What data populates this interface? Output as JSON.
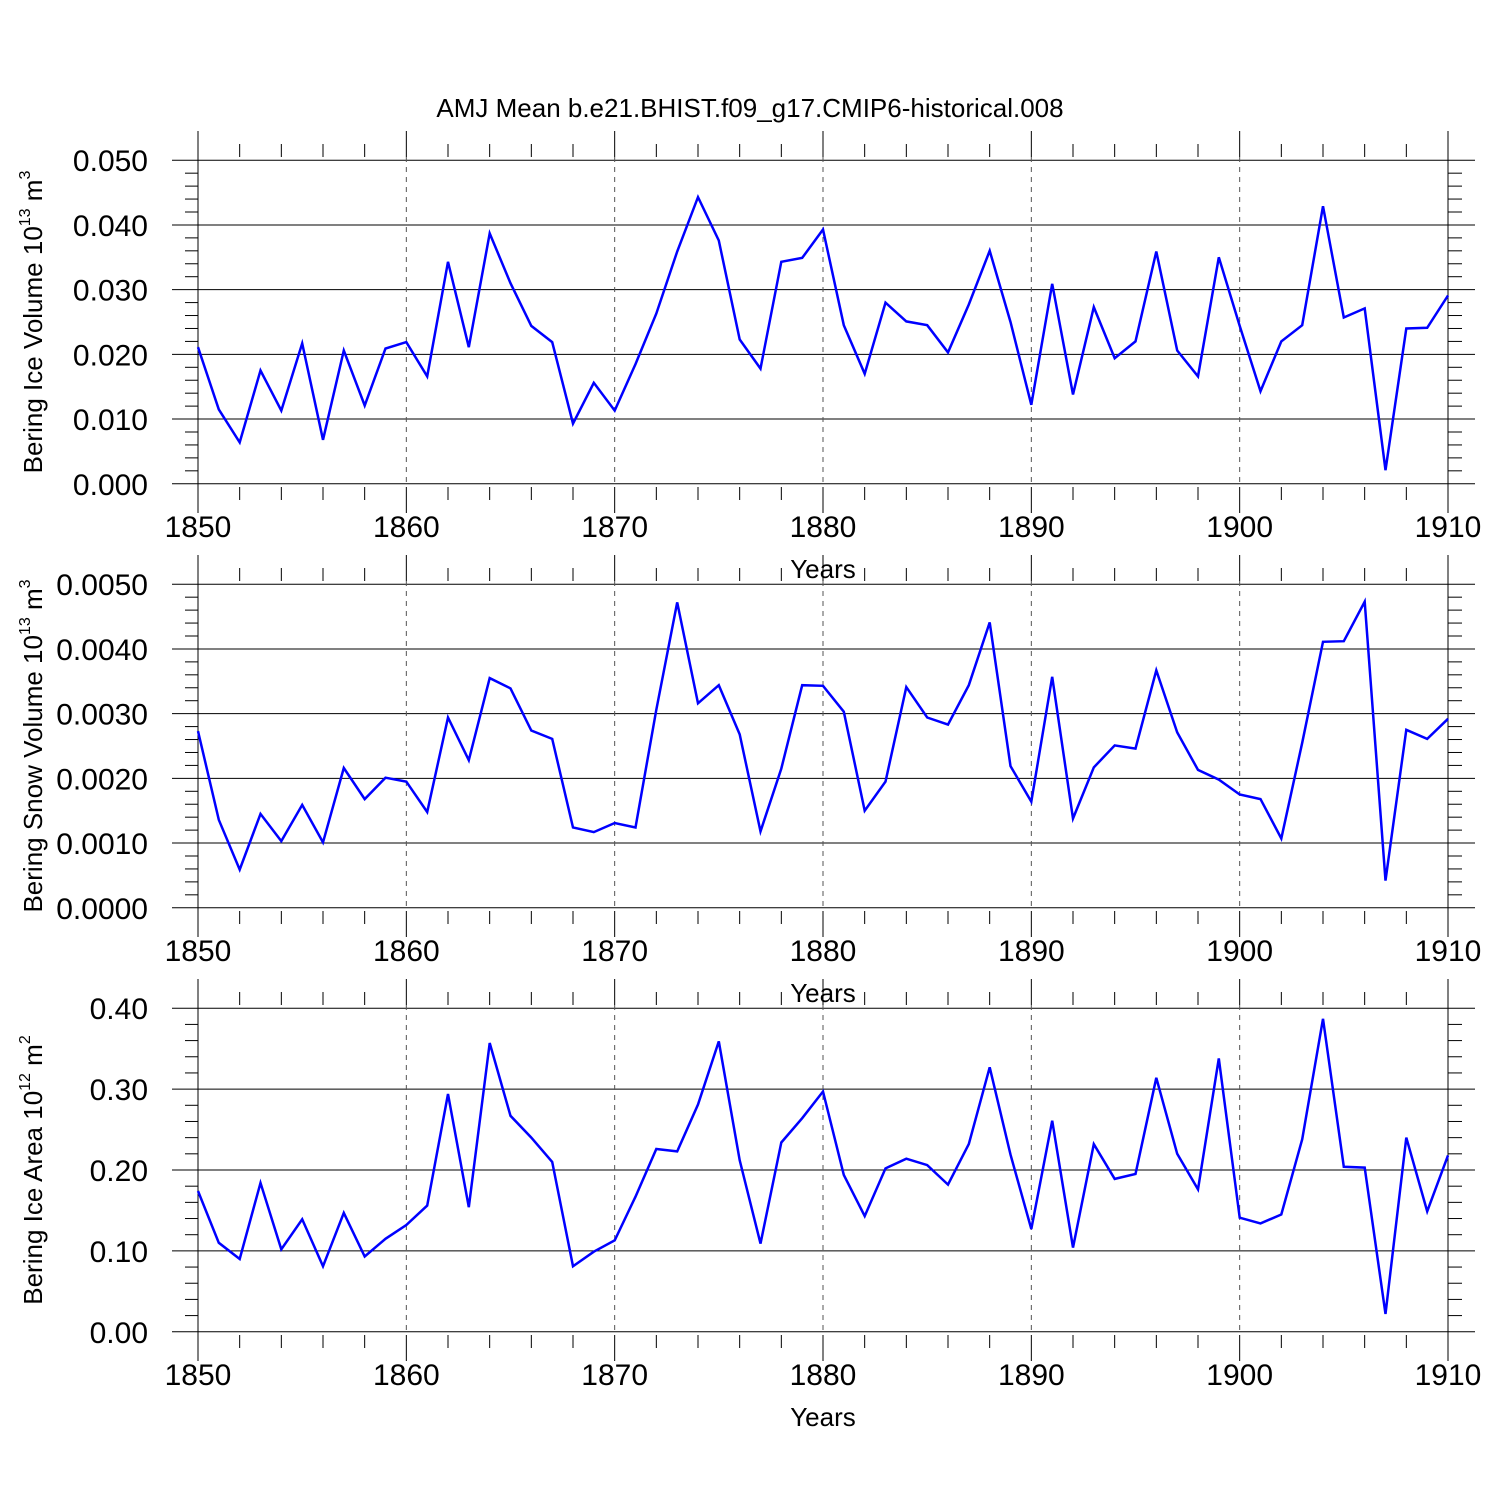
{
  "title": "AMJ Mean b.e21.BHIST.f09_g17.CMIP6-historical.008",
  "line_color": "#0000ff",
  "chart_data": [
    {
      "type": "line",
      "ylabel": {
        "text": "Bering Ice Volume 10",
        "sup1": "13",
        "unit": " m",
        "sup2": "3"
      },
      "xlabel": "Years",
      "xlim": [
        1850,
        1910
      ],
      "ylim": [
        -0.0005,
        0.0505
      ],
      "x_ticks": [
        1850,
        1860,
        1870,
        1880,
        1890,
        1900,
        1910
      ],
      "y_ticks": [
        0.0,
        0.01,
        0.02,
        0.03,
        0.04,
        0.05
      ],
      "y_tick_labels": [
        "0.000",
        "0.010",
        "0.020",
        "0.030",
        "0.040",
        "0.050"
      ],
      "x": [
        1850,
        1851,
        1852,
        1853,
        1854,
        1855,
        1856,
        1857,
        1858,
        1859,
        1860,
        1861,
        1862,
        1863,
        1864,
        1865,
        1866,
        1867,
        1868,
        1869,
        1870,
        1871,
        1872,
        1873,
        1874,
        1875,
        1876,
        1877,
        1878,
        1879,
        1880,
        1881,
        1882,
        1883,
        1884,
        1885,
        1886,
        1887,
        1888,
        1889,
        1890,
        1891,
        1892,
        1893,
        1894,
        1895,
        1896,
        1897,
        1898,
        1899,
        1900,
        1901,
        1902,
        1903,
        1904,
        1905,
        1906,
        1907,
        1908,
        1909,
        1910
      ],
      "values": [
        0.0211,
        0.0115,
        0.0064,
        0.0175,
        0.0113,
        0.0217,
        0.0068,
        0.0206,
        0.0121,
        0.0209,
        0.0219,
        0.0166,
        0.0343,
        0.0211,
        0.0387,
        0.031,
        0.0244,
        0.0219,
        0.0093,
        0.0156,
        0.0113,
        0.0185,
        0.0263,
        0.0359,
        0.0443,
        0.0376,
        0.0223,
        0.0178,
        0.0343,
        0.0349,
        0.0393,
        0.0245,
        0.017,
        0.028,
        0.0251,
        0.0245,
        0.0203,
        0.0277,
        0.036,
        0.025,
        0.0122,
        0.0309,
        0.0138,
        0.0273,
        0.0194,
        0.022,
        0.0359,
        0.0206,
        0.0166,
        0.035,
        0.0244,
        0.0143,
        0.022,
        0.0245,
        0.0429,
        0.0257,
        0.0271,
        0.0021,
        0.024,
        0.0241,
        0.0291
      ]
    },
    {
      "type": "line",
      "ylabel": {
        "text": "Bering Snow Volume 10",
        "sup1": "13",
        "unit": " m",
        "sup2": "3"
      },
      "xlabel": "Years",
      "xlim": [
        1850,
        1910
      ],
      "ylim": [
        -5e-05,
        0.00505
      ],
      "x_ticks": [
        1850,
        1860,
        1870,
        1880,
        1890,
        1900,
        1910
      ],
      "y_ticks": [
        0.0,
        0.001,
        0.002,
        0.003,
        0.004,
        0.005
      ],
      "y_tick_labels": [
        "0.0000",
        "0.0010",
        "0.0020",
        "0.0030",
        "0.0040",
        "0.0050"
      ],
      "x": [
        1850,
        1851,
        1852,
        1853,
        1854,
        1855,
        1856,
        1857,
        1858,
        1859,
        1860,
        1861,
        1862,
        1863,
        1864,
        1865,
        1866,
        1867,
        1868,
        1869,
        1870,
        1871,
        1872,
        1873,
        1874,
        1875,
        1876,
        1877,
        1878,
        1879,
        1880,
        1881,
        1882,
        1883,
        1884,
        1885,
        1886,
        1887,
        1888,
        1889,
        1890,
        1891,
        1892,
        1893,
        1894,
        1895,
        1896,
        1897,
        1898,
        1899,
        1900,
        1901,
        1902,
        1903,
        1904,
        1905,
        1906,
        1907,
        1908,
        1909,
        1910
      ],
      "values": [
        0.00273,
        0.00136,
        0.00059,
        0.00145,
        0.00103,
        0.00159,
        0.00101,
        0.00216,
        0.00168,
        0.00201,
        0.00195,
        0.00148,
        0.00294,
        0.00228,
        0.00355,
        0.00339,
        0.00274,
        0.00261,
        0.00124,
        0.00117,
        0.00131,
        0.00124,
        0.00306,
        0.00472,
        0.00316,
        0.00344,
        0.00268,
        0.00118,
        0.00215,
        0.00344,
        0.00343,
        0.00303,
        0.0015,
        0.00195,
        0.00341,
        0.00294,
        0.00283,
        0.00344,
        0.00441,
        0.00219,
        0.00164,
        0.00357,
        0.00138,
        0.00217,
        0.00251,
        0.00246,
        0.00367,
        0.00271,
        0.00213,
        0.00198,
        0.00175,
        0.00168,
        0.00107,
        0.00255,
        0.00411,
        0.00412,
        0.00473,
        0.00042,
        0.00275,
        0.00261,
        0.00292
      ]
    },
    {
      "type": "line",
      "ylabel": {
        "text": "Bering Ice Area 10",
        "sup1": "12",
        "unit": " m",
        "sup2": "2"
      },
      "xlabel": "Years",
      "xlim": [
        1850,
        1910
      ],
      "ylim": [
        -0.004,
        0.404
      ],
      "x_ticks": [
        1850,
        1860,
        1870,
        1880,
        1890,
        1900,
        1910
      ],
      "y_ticks": [
        0.0,
        0.1,
        0.2,
        0.3,
        0.4
      ],
      "y_tick_labels": [
        "0.00",
        "0.10",
        "0.20",
        "0.30",
        "0.40"
      ],
      "x": [
        1850,
        1851,
        1852,
        1853,
        1854,
        1855,
        1856,
        1857,
        1858,
        1859,
        1860,
        1861,
        1862,
        1863,
        1864,
        1865,
        1866,
        1867,
        1868,
        1869,
        1870,
        1871,
        1872,
        1873,
        1874,
        1875,
        1876,
        1877,
        1878,
        1879,
        1880,
        1881,
        1882,
        1883,
        1884,
        1885,
        1886,
        1887,
        1888,
        1889,
        1890,
        1891,
        1892,
        1893,
        1894,
        1895,
        1896,
        1897,
        1898,
        1899,
        1900,
        1901,
        1902,
        1903,
        1904,
        1905,
        1906,
        1907,
        1908,
        1909,
        1910
      ],
      "values": [
        0.174,
        0.11,
        0.09,
        0.184,
        0.102,
        0.139,
        0.081,
        0.147,
        0.093,
        0.115,
        0.132,
        0.156,
        0.294,
        0.154,
        0.357,
        0.267,
        0.24,
        0.21,
        0.081,
        0.099,
        0.113,
        0.167,
        0.226,
        0.223,
        0.281,
        0.359,
        0.212,
        0.109,
        0.234,
        0.264,
        0.297,
        0.194,
        0.143,
        0.202,
        0.214,
        0.206,
        0.182,
        0.232,
        0.327,
        0.219,
        0.127,
        0.261,
        0.104,
        0.232,
        0.189,
        0.195,
        0.314,
        0.22,
        0.176,
        0.338,
        0.141,
        0.134,
        0.145,
        0.238,
        0.387,
        0.204,
        0.203,
        0.022,
        0.24,
        0.149,
        0.218
      ]
    }
  ]
}
